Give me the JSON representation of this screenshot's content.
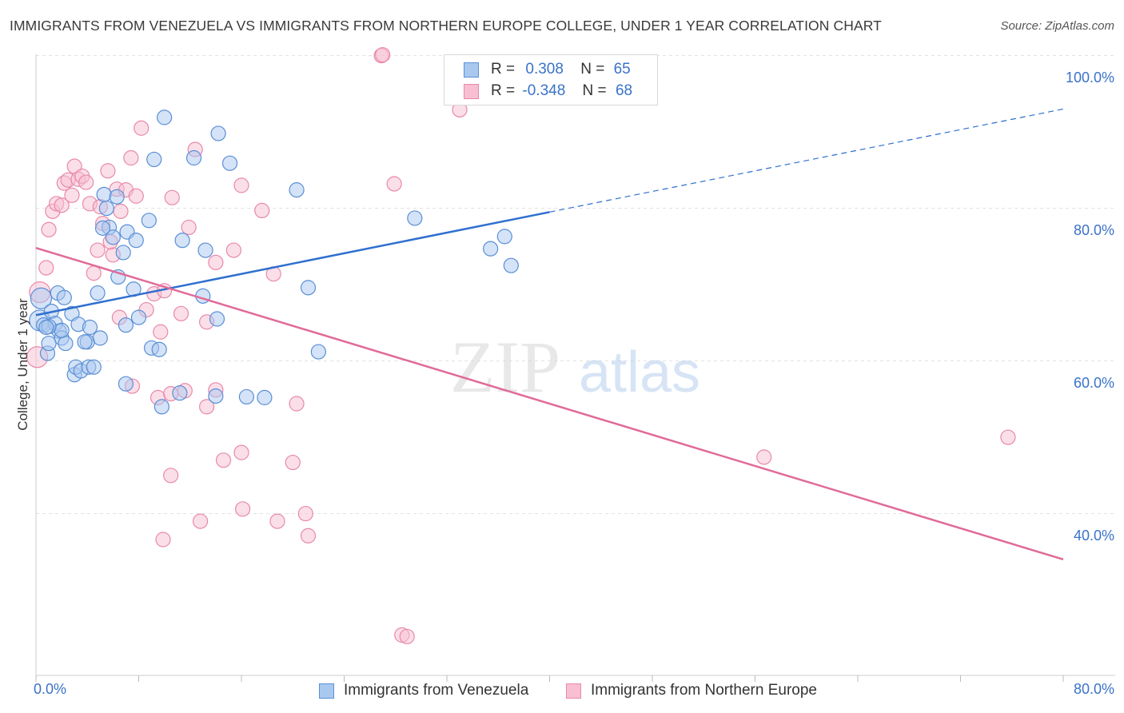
{
  "title": "IMMIGRANTS FROM VENEZUELA VS IMMIGRANTS FROM NORTHERN EUROPE COLLEGE, UNDER 1 YEAR CORRELATION CHART",
  "source": "Source: ZipAtlas.com",
  "watermark": {
    "zip": "ZIP",
    "atlas": "atlas"
  },
  "legend": {
    "venezuela": {
      "r_label": "R =",
      "r_value": "0.308",
      "n_label": "N =",
      "n_value": "65"
    },
    "northern_europe": {
      "r_label": "R =",
      "r_value": "-0.348",
      "n_label": "N =",
      "n_value": "68"
    }
  },
  "colors": {
    "venezuela_fill": "#a9c8f0",
    "venezuela_stroke": "#5a8fd6",
    "venezuela_line": "#2f6fcf",
    "northern_europe_fill": "#f7bfd1",
    "northern_europe_stroke": "#e889a9",
    "northern_europe_line": "#e06a98",
    "tick_text": "#3a72c8",
    "grid": "#e2e2e2"
  },
  "chart_data": {
    "type": "scatter",
    "title": "IMMIGRANTS FROM VENEZUELA VS IMMIGRANTS FROM NORTHERN EUROPE COLLEGE, UNDER 1 YEAR CORRELATION CHART",
    "xlabel": "",
    "ylabel": "College, Under 1 year",
    "xlim": [
      0,
      80
    ],
    "ylim": [
      20,
      102
    ],
    "x_tick_labels": [
      "0.0%",
      "80.0%"
    ],
    "y_ticks": [
      40,
      60,
      80,
      100
    ],
    "y_tick_labels": [
      "40.0%",
      "60.0%",
      "80.0%",
      "100.0%"
    ],
    "grid": true,
    "legend_position": "top-center",
    "series": [
      {
        "name": "Immigrants from Venezuela",
        "regression": {
          "x_start": 0,
          "y_start": 66.0,
          "x_end": 40,
          "y_end": 79.5,
          "dashed_to_x": 80,
          "dashed_to_y": 93.0
        },
        "points": [
          [
            0.3,
            65.3
          ],
          [
            0.4,
            68.2
          ],
          [
            0.6,
            64.7
          ],
          [
            0.9,
            61.0
          ],
          [
            1.0,
            62.3
          ],
          [
            1.2,
            66.5
          ],
          [
            1.5,
            64.9
          ],
          [
            1.7,
            68.9
          ],
          [
            1.8,
            63.9
          ],
          [
            2.0,
            63.0
          ],
          [
            2.2,
            68.3
          ],
          [
            2.3,
            62.3
          ],
          [
            2.8,
            66.2
          ],
          [
            3.0,
            58.2
          ],
          [
            3.1,
            59.2
          ],
          [
            3.3,
            64.8
          ],
          [
            3.5,
            58.7
          ],
          [
            4.0,
            62.5
          ],
          [
            4.1,
            59.2
          ],
          [
            4.2,
            64.4
          ],
          [
            4.5,
            59.2
          ],
          [
            5.0,
            63.0
          ],
          [
            5.3,
            81.8
          ],
          [
            5.5,
            80.0
          ],
          [
            6.3,
            81.5
          ],
          [
            6.4,
            71.0
          ],
          [
            6.8,
            74.2
          ],
          [
            7.0,
            64.7
          ],
          [
            7.1,
            76.9
          ],
          [
            7.6,
            69.4
          ],
          [
            8.0,
            65.7
          ],
          [
            9.0,
            61.7
          ],
          [
            9.2,
            86.4
          ],
          [
            10.0,
            91.9
          ],
          [
            11.4,
            75.8
          ],
          [
            12.3,
            86.6
          ],
          [
            13.2,
            74.5
          ],
          [
            14.2,
            89.8
          ],
          [
            15.1,
            85.9
          ],
          [
            17.8,
            55.2
          ],
          [
            20.3,
            82.4
          ],
          [
            21.2,
            69.6
          ],
          [
            22.0,
            61.2
          ],
          [
            29.5,
            78.7
          ],
          [
            4.8,
            68.9
          ],
          [
            2.0,
            64.0
          ],
          [
            5.7,
            77.5
          ],
          [
            8.8,
            78.4
          ],
          [
            1.0,
            64.5
          ],
          [
            7.0,
            57.0
          ],
          [
            9.6,
            61.5
          ],
          [
            9.8,
            54.0
          ],
          [
            11.2,
            55.8
          ],
          [
            14.0,
            55.4
          ],
          [
            14.1,
            65.5
          ],
          [
            3.8,
            62.5
          ],
          [
            6.0,
            76.2
          ],
          [
            5.2,
            77.4
          ],
          [
            7.8,
            75.8
          ],
          [
            16.4,
            55.3
          ],
          [
            13.0,
            68.5
          ],
          [
            35.4,
            74.7
          ],
          [
            36.5,
            76.3
          ],
          [
            37.0,
            72.5
          ],
          [
            0.8,
            64.4
          ]
        ]
      },
      {
        "name": "Immigrants from Northern Europe",
        "regression": {
          "x_start": 0,
          "y_start": 74.8,
          "x_end": 80,
          "y_end": 34.0
        },
        "points": [
          [
            0.1,
            60.5
          ],
          [
            0.3,
            69.0
          ],
          [
            0.8,
            72.2
          ],
          [
            1.0,
            77.2
          ],
          [
            1.3,
            79.6
          ],
          [
            1.6,
            80.6
          ],
          [
            2.0,
            80.4
          ],
          [
            2.2,
            83.3
          ],
          [
            2.5,
            83.7
          ],
          [
            2.8,
            81.7
          ],
          [
            3.0,
            85.5
          ],
          [
            3.3,
            83.8
          ],
          [
            3.6,
            84.2
          ],
          [
            3.9,
            83.4
          ],
          [
            4.2,
            80.6
          ],
          [
            4.5,
            71.5
          ],
          [
            4.8,
            74.5
          ],
          [
            5.0,
            80.2
          ],
          [
            5.2,
            78.0
          ],
          [
            5.6,
            84.9
          ],
          [
            6.0,
            73.9
          ],
          [
            6.3,
            82.5
          ],
          [
            6.6,
            79.6
          ],
          [
            7.0,
            82.4
          ],
          [
            7.4,
            86.6
          ],
          [
            7.8,
            81.6
          ],
          [
            8.2,
            90.5
          ],
          [
            8.6,
            66.7
          ],
          [
            9.2,
            68.8
          ],
          [
            9.7,
            63.8
          ],
          [
            10.0,
            69.2
          ],
          [
            10.6,
            81.4
          ],
          [
            11.3,
            66.2
          ],
          [
            11.9,
            77.5
          ],
          [
            12.4,
            87.7
          ],
          [
            13.3,
            65.1
          ],
          [
            14.0,
            72.9
          ],
          [
            15.4,
            74.5
          ],
          [
            16.0,
            83.0
          ],
          [
            17.6,
            79.7
          ],
          [
            18.5,
            71.4
          ],
          [
            20.3,
            54.4
          ],
          [
            26.9,
            100.0
          ],
          [
            27.0,
            100.1
          ],
          [
            27.9,
            83.2
          ],
          [
            33.0,
            92.9
          ],
          [
            7.5,
            56.7
          ],
          [
            9.5,
            55.2
          ],
          [
            10.5,
            55.7
          ],
          [
            11.6,
            56.1
          ],
          [
            10.5,
            45.0
          ],
          [
            13.3,
            54.0
          ],
          [
            14.0,
            56.2
          ],
          [
            14.6,
            47.0
          ],
          [
            16.0,
            48.0
          ],
          [
            16.1,
            40.6
          ],
          [
            18.8,
            39.0
          ],
          [
            20.0,
            46.7
          ],
          [
            21.0,
            40.0
          ],
          [
            21.2,
            37.1
          ],
          [
            9.9,
            36.6
          ],
          [
            12.8,
            39.0
          ],
          [
            28.5,
            24.1
          ],
          [
            28.9,
            23.9
          ],
          [
            56.7,
            47.4
          ],
          [
            75.7,
            50.0
          ],
          [
            5.8,
            75.6
          ],
          [
            6.5,
            65.7
          ]
        ]
      }
    ]
  },
  "bottom_legend": {
    "venezuela_label": "Immigrants from Venezuela",
    "northern_europe_label": "Immigrants from Northern Europe"
  },
  "axis_text": {
    "ylabel": "College, Under 1 year",
    "y100": "100.0%",
    "y80": "80.0%",
    "y60": "60.0%",
    "y40": "40.0%",
    "x_left": "0.0%",
    "x_right": "80.0%"
  }
}
